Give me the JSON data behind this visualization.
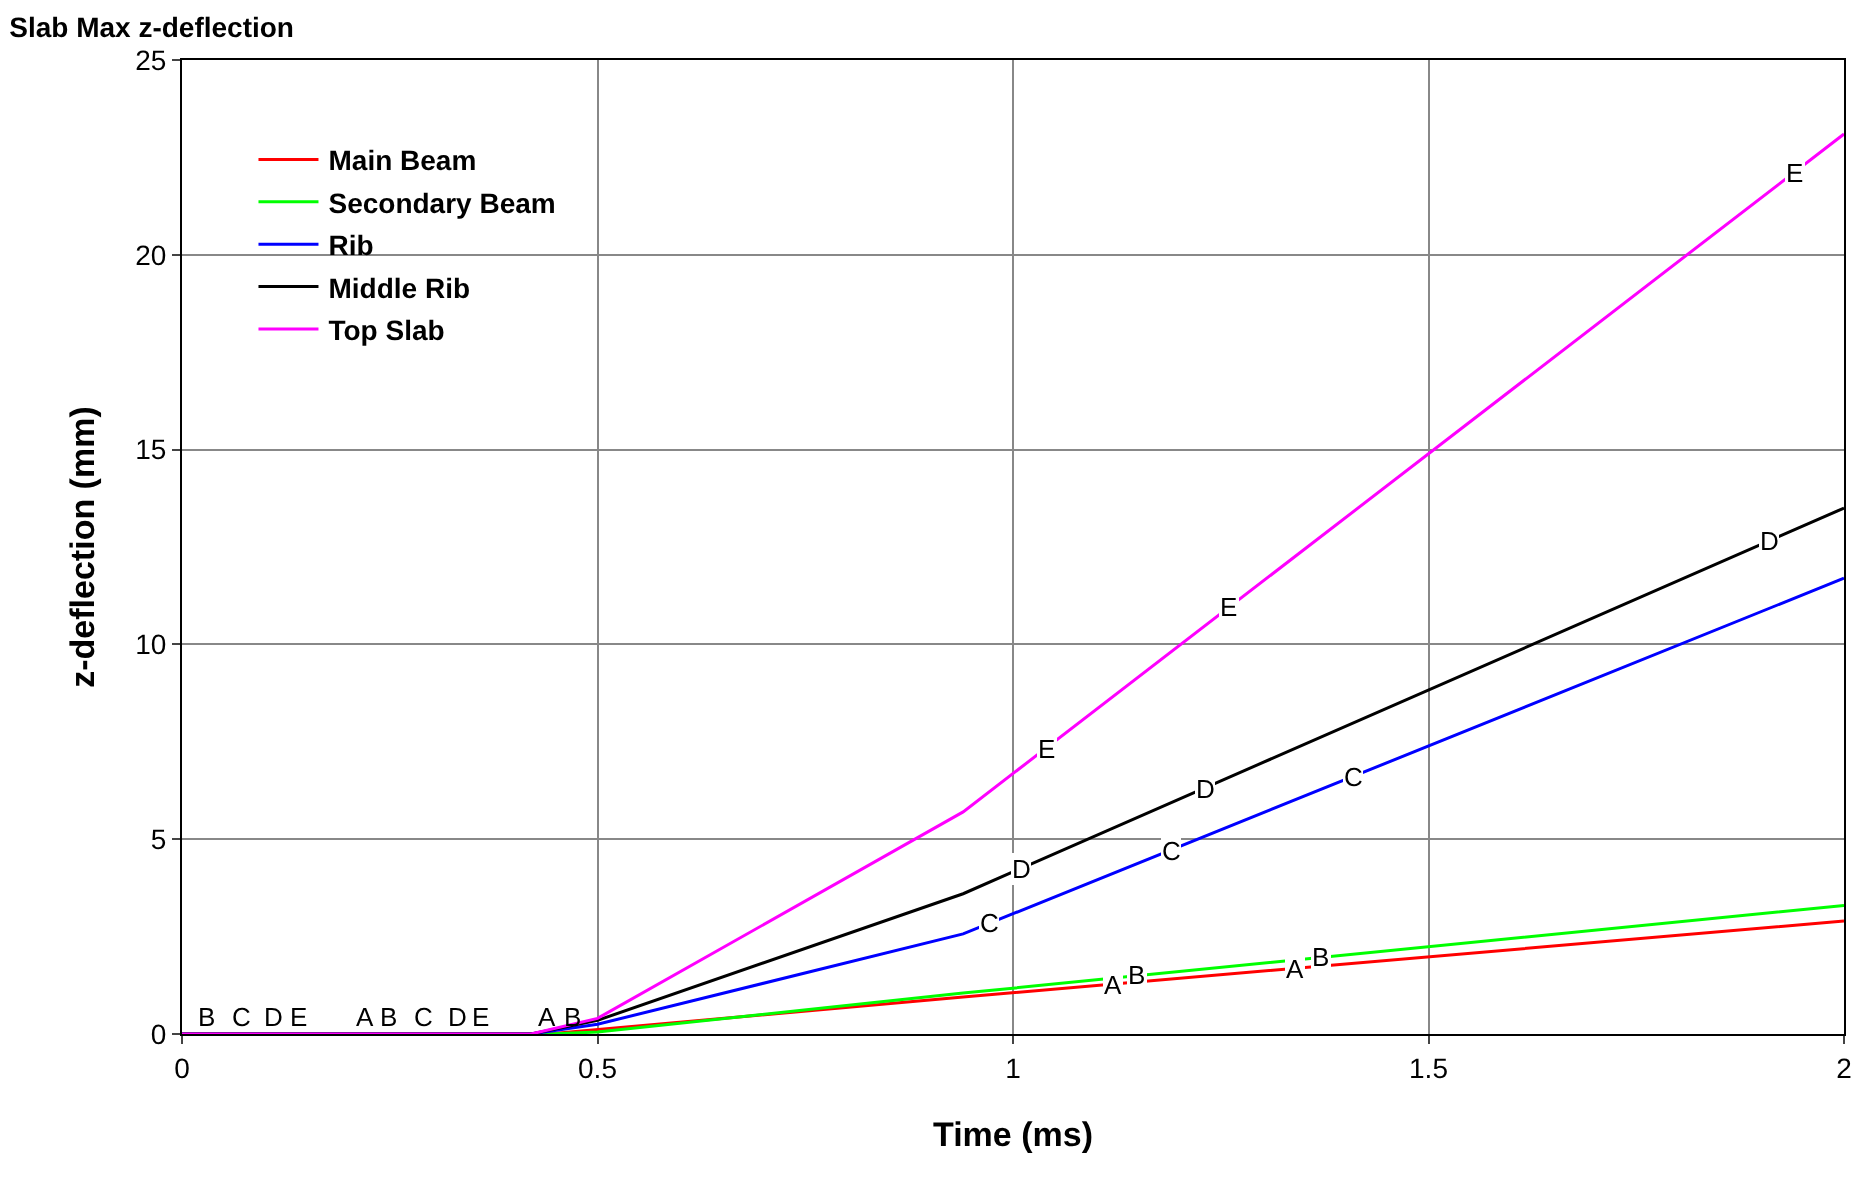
{
  "chart_data": {
    "type": "line",
    "title": "Slab Max z-deflection",
    "xlabel": "Time (ms)",
    "ylabel": "z-deflection (mm)",
    "xlim": [
      0,
      2
    ],
    "xticks": [
      0,
      0.5,
      1,
      1.5,
      2
    ],
    "ylim": [
      0,
      25
    ],
    "yticks": [
      0,
      5,
      10,
      15,
      20,
      25
    ],
    "grid": true,
    "legend": "top left",
    "marker": "none",
    "line_style": "solid",
    "series": [
      {
        "name": "Main Beam",
        "color": "#ff0000",
        "x": [
          0,
          0.44,
          0.94,
          2
        ],
        "values": [
          0,
          0,
          0.95,
          2.9
        ]
      },
      {
        "name": "Secondary Beam",
        "color": "#00ff00",
        "x": [
          0,
          0.44,
          0.5,
          0.94,
          2
        ],
        "values": [
          0,
          0,
          0.05,
          1.05,
          3.3
        ]
      },
      {
        "name": "Rib",
        "color": "#0000ff",
        "x": [
          0,
          0.42,
          0.5,
          0.94,
          2
        ],
        "values": [
          0,
          0,
          0.25,
          2.57,
          11.7
        ]
      },
      {
        "name": "Middle Rib",
        "color": "#000000",
        "x": [
          0,
          0.42,
          0.5,
          0.94,
          2
        ],
        "values": [
          0,
          0,
          0.35,
          3.6,
          13.5
        ]
      },
      {
        "name": "Top Slab",
        "color": "#ff00ff",
        "x": [
          0,
          0.42,
          0.5,
          0.94,
          2
        ],
        "values": [
          0,
          0,
          0.4,
          5.7,
          23.1
        ]
      }
    ],
    "annotations": [
      {
        "text": "B",
        "x": 0.03,
        "y": 0
      },
      {
        "text": "C",
        "x": 0.07,
        "y": 0
      },
      {
        "text": "D",
        "x": 0.11,
        "y": 0
      },
      {
        "text": "E",
        "x": 0.14,
        "y": 0
      },
      {
        "text": "A",
        "x": 0.22,
        "y": 0
      },
      {
        "text": "B",
        "x": 0.25,
        "y": 0
      },
      {
        "text": "C",
        "x": 0.29,
        "y": 0
      },
      {
        "text": "D",
        "x": 0.33,
        "y": 0
      },
      {
        "text": "E",
        "x": 0.36,
        "y": 0
      },
      {
        "text": "A",
        "x": 0.44,
        "y": 0
      },
      {
        "text": "B",
        "x": 0.47,
        "y": 0
      },
      {
        "text": "A",
        "x": 1.12,
        "y": 1.28
      },
      {
        "text": "B",
        "x": 1.15,
        "y": 1.5
      },
      {
        "text": "A",
        "x": 1.34,
        "y": 1.69
      },
      {
        "text": "B",
        "x": 1.37,
        "y": 1.96
      },
      {
        "text": "C",
        "x": 0.97,
        "y": 2.83
      },
      {
        "text": "D",
        "x": 1.01,
        "y": 4.25
      },
      {
        "text": "C",
        "x": 1.19,
        "y": 4.72
      },
      {
        "text": "D",
        "x": 1.23,
        "y": 6.31
      },
      {
        "text": "C",
        "x": 1.41,
        "y": 6.62
      },
      {
        "text": "D",
        "x": 1.91,
        "y": 12.66
      },
      {
        "text": "E",
        "x": 1.04,
        "y": 7.34
      },
      {
        "text": "E",
        "x": 1.26,
        "y": 10.95
      },
      {
        "text": "E",
        "x": 1.94,
        "y": 22.1
      }
    ]
  }
}
